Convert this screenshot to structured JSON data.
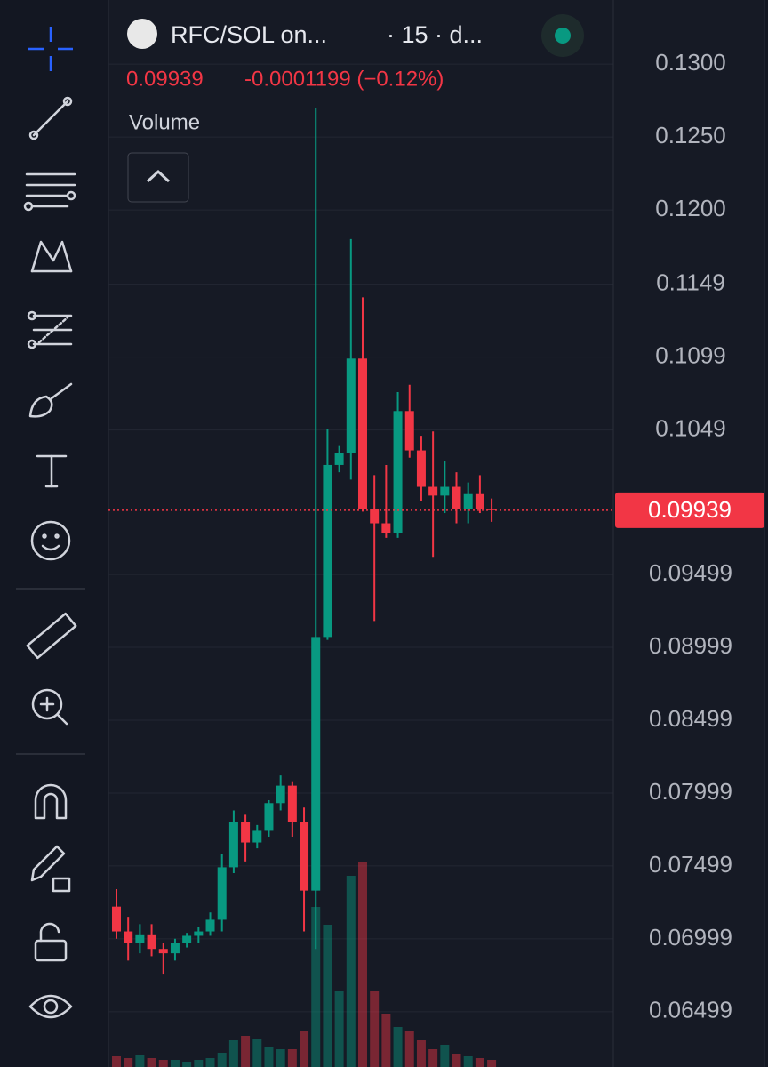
{
  "header": {
    "symbol": "RFC/SOL on...",
    "interval": "· 15 · d...",
    "last": "0.09939",
    "change": "-0.0001199 (−0.12%)",
    "indicator": "Volume"
  },
  "chart_data": {
    "type": "candlestick",
    "open": [
      0.0722,
      0.0705,
      0.0697,
      0.0703,
      0.0693,
      0.069,
      0.0697,
      0.0702,
      0.0705,
      0.0713,
      0.0749,
      0.078,
      0.0766,
      0.0774,
      0.0793,
      0.0805,
      0.078,
      0.0733,
      0.0907,
      0.1025,
      0.1033,
      0.1098,
      0.0995,
      0.0985,
      0.0978,
      0.1062,
      0.1035,
      0.101,
      0.1004,
      0.101,
      0.0995,
      0.1005,
      0.0995
    ],
    "high": [
      0.0734,
      0.0715,
      0.071,
      0.071,
      0.0697,
      0.07,
      0.0704,
      0.0708,
      0.0718,
      0.0758,
      0.0788,
      0.0785,
      0.0778,
      0.0795,
      0.0812,
      0.0808,
      0.079,
      0.127,
      0.105,
      0.1038,
      0.118,
      0.114,
      0.1018,
      0.1025,
      0.1075,
      0.108,
      0.1045,
      0.1048,
      0.1028,
      0.102,
      0.1013,
      0.1018,
      0.1002
    ],
    "low": [
      0.07,
      0.0685,
      0.069,
      0.0688,
      0.0676,
      0.0685,
      0.0694,
      0.0697,
      0.0702,
      0.0705,
      0.0745,
      0.0753,
      0.0762,
      0.077,
      0.0788,
      0.077,
      0.0705,
      0.0693,
      0.0905,
      0.102,
      0.1015,
      0.0993,
      0.0918,
      0.0975,
      0.0975,
      0.103,
      0.1,
      0.0962,
      0.0992,
      0.0985,
      0.0985,
      0.0992,
      0.0986
    ],
    "close": [
      0.0705,
      0.0697,
      0.0703,
      0.0693,
      0.069,
      0.0697,
      0.0702,
      0.0705,
      0.0713,
      0.0749,
      0.078,
      0.0766,
      0.0774,
      0.0793,
      0.0805,
      0.078,
      0.0733,
      0.0907,
      0.1025,
      0.1033,
      0.1098,
      0.0995,
      0.0985,
      0.0978,
      0.1062,
      0.1035,
      0.101,
      0.1004,
      0.101,
      0.0995,
      0.1005,
      0.0995,
      0.0994
    ],
    "volume": [
      12,
      10,
      14,
      10,
      8,
      8,
      6,
      8,
      10,
      16,
      30,
      35,
      32,
      22,
      20,
      20,
      40,
      180,
      160,
      85,
      215,
      230,
      85,
      60,
      45,
      40,
      30,
      20,
      25,
      15,
      12,
      10,
      8
    ],
    "up_color": "#089981",
    "down_color": "#f23645",
    "last_price": 0.09939,
    "ylim": [
      0.0612,
      0.1344
    ],
    "yticks": [
      {
        "value": 0.13,
        "label": "0.1300"
      },
      {
        "value": 0.125,
        "label": "0.1250"
      },
      {
        "value": 0.12,
        "label": "0.1200"
      },
      {
        "value": 0.1149,
        "label": "0.1149"
      },
      {
        "value": 0.1099,
        "label": "0.1099"
      },
      {
        "value": 0.1049,
        "label": "0.1049"
      },
      0.09499,
      0.08999,
      0.08499,
      0.07999,
      0.07499,
      0.06999,
      0.06499
    ],
    "grid": true
  }
}
